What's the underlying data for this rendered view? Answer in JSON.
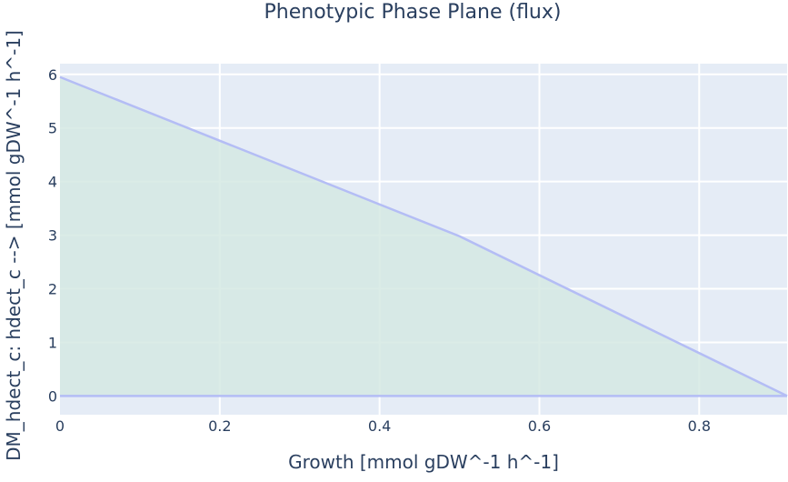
{
  "chart_data": {
    "type": "area",
    "title": "Phenotypic Phase Plane (flux)",
    "xlabel": "Growth [mmol gDW^-1 h^-1]",
    "ylabel": "DM_hdect_c: hdect_c -->  [mmol gDW^-1 h^-1]",
    "xlim": [
      0,
      0.91
    ],
    "ylim": [
      -0.35,
      6.2
    ],
    "x_ticks": [
      0,
      0.2,
      0.4,
      0.6,
      0.8
    ],
    "x_tick_labels": [
      "0",
      "0.2",
      "0.4",
      "0.6",
      "0.8"
    ],
    "y_ticks": [
      0,
      1,
      2,
      3,
      4,
      5,
      6
    ],
    "y_tick_labels": [
      "0",
      "1",
      "2",
      "3",
      "4",
      "5",
      "6"
    ],
    "grid": true,
    "series": [
      {
        "role": "upper_bound",
        "x": [
          0,
          0.5,
          0.91
        ],
        "y": [
          5.95,
          2.98,
          0
        ]
      },
      {
        "role": "lower_bound",
        "x": [
          0,
          0.91
        ],
        "y": [
          0,
          0
        ]
      }
    ],
    "colors": {
      "plot_background": "#e5ecf6",
      "grid": "#ffffff",
      "line": "#b4bdf5",
      "fill": "#d5e9e3",
      "text": "#2a3f5f"
    }
  }
}
